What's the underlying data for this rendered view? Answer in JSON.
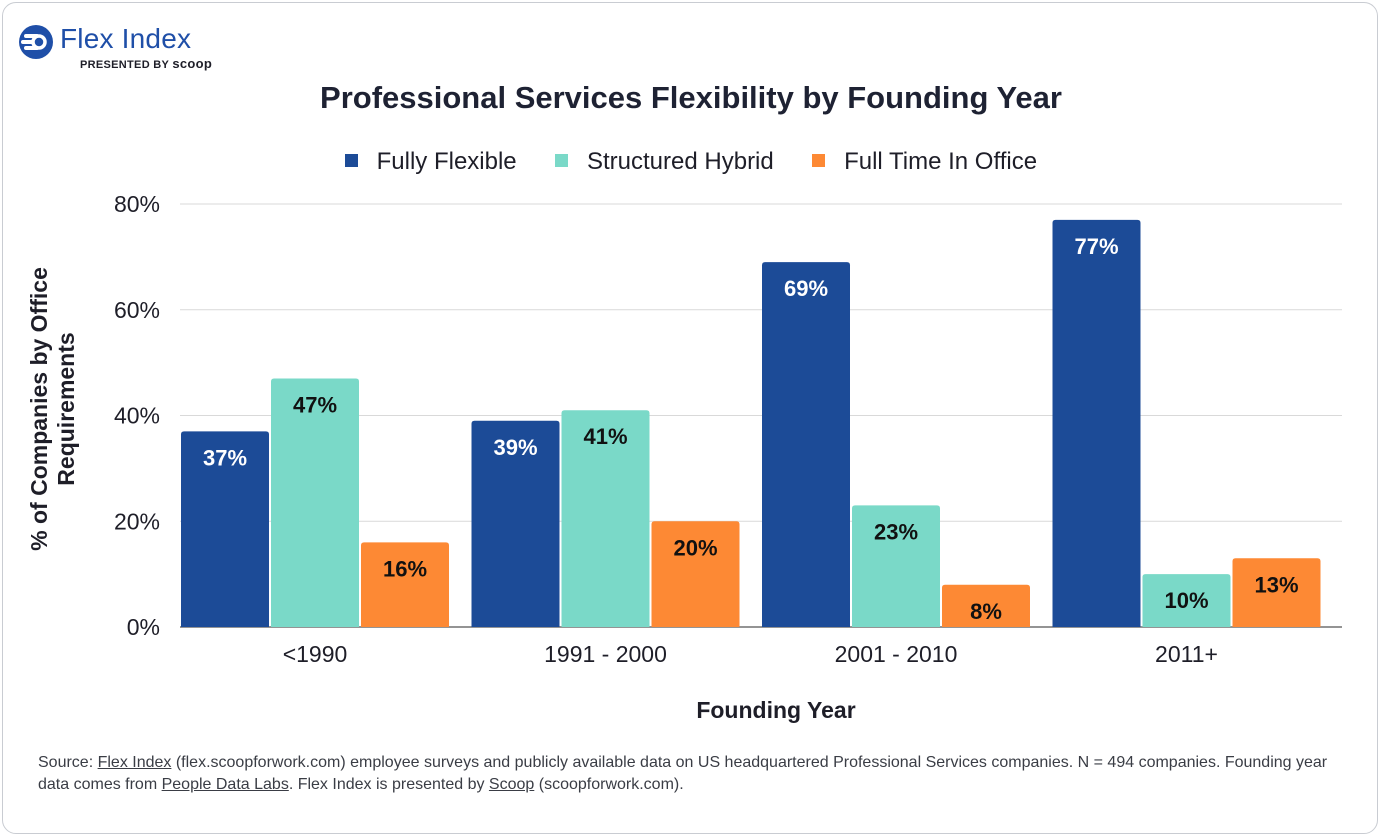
{
  "brand": {
    "name": "Flex Index",
    "presented_by": "PRESENTED BY",
    "presenter": "scoop"
  },
  "chart_data": {
    "type": "bar",
    "title": "Professional Services Flexibility by Founding Year",
    "xlabel": "Founding Year",
    "ylabel": "% of Companies by Office Requirements",
    "categories": [
      "<1990",
      "1991 - 2000",
      "2001 - 2010",
      "2011+"
    ],
    "series": [
      {
        "name": "Fully Flexible",
        "color": "#1c4b97",
        "label_color": "#ffffff",
        "values": [
          37,
          39,
          69,
          77
        ],
        "labels": [
          "37%",
          "39%",
          "69%",
          "77%"
        ]
      },
      {
        "name": "Structured Hybrid",
        "color": "#7ad9c8",
        "label_color": "#111111",
        "values": [
          47,
          41,
          23,
          10
        ],
        "labels": [
          "47%",
          "41%",
          "23%",
          "10%"
        ]
      },
      {
        "name": "Full Time In Office",
        "color": "#fd8934",
        "label_color": "#111111",
        "values": [
          16,
          20,
          8,
          13
        ],
        "labels": [
          "16%",
          "20%",
          "8%",
          "13%"
        ]
      }
    ],
    "ylim": [
      0,
      80
    ],
    "yticks": [
      0,
      20,
      40,
      60,
      80
    ],
    "ytick_labels": [
      "0%",
      "20%",
      "40%",
      "60%",
      "80%"
    ],
    "grid": true,
    "legend_position": "top"
  },
  "source": {
    "prefix": "Source: ",
    "link1": "Flex Index",
    "text1": " (flex.scoopforwork.com) employee surveys and publicly available data on US headquartered Professional Services companies. N = 494 companies. Founding year data comes from ",
    "link2": "People Data Labs",
    "text2": ". Flex Index is presented by ",
    "link3": "Scoop",
    "text3": " (scoopforwork.com)."
  }
}
